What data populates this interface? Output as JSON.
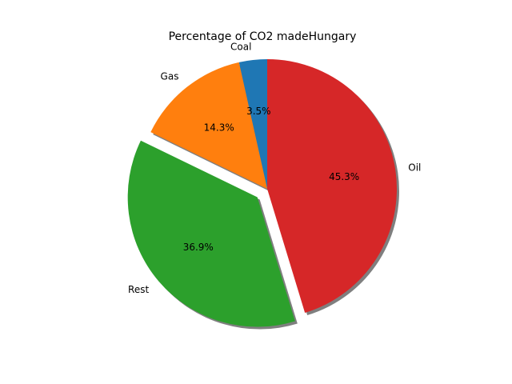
{
  "chart_data": {
    "type": "pie",
    "title": "Percentage of CO2 madeHungary",
    "start_angle_deg": 90,
    "direction": "counterclockwise",
    "shadow": true,
    "slices": [
      {
        "label": "Coal",
        "value": 3.5,
        "pct_label": "3.5%",
        "color": "#1f77b4",
        "exploded": false
      },
      {
        "label": "Gas",
        "value": 14.3,
        "pct_label": "14.3%",
        "color": "#ff7f0e",
        "exploded": false
      },
      {
        "label": "Rest",
        "value": 36.9,
        "pct_label": "36.9%",
        "color": "#2ca02c",
        "exploded": true
      },
      {
        "label": "Oil",
        "value": 45.3,
        "pct_label": "45.3%",
        "color": "#d62728",
        "exploded": false
      }
    ]
  }
}
